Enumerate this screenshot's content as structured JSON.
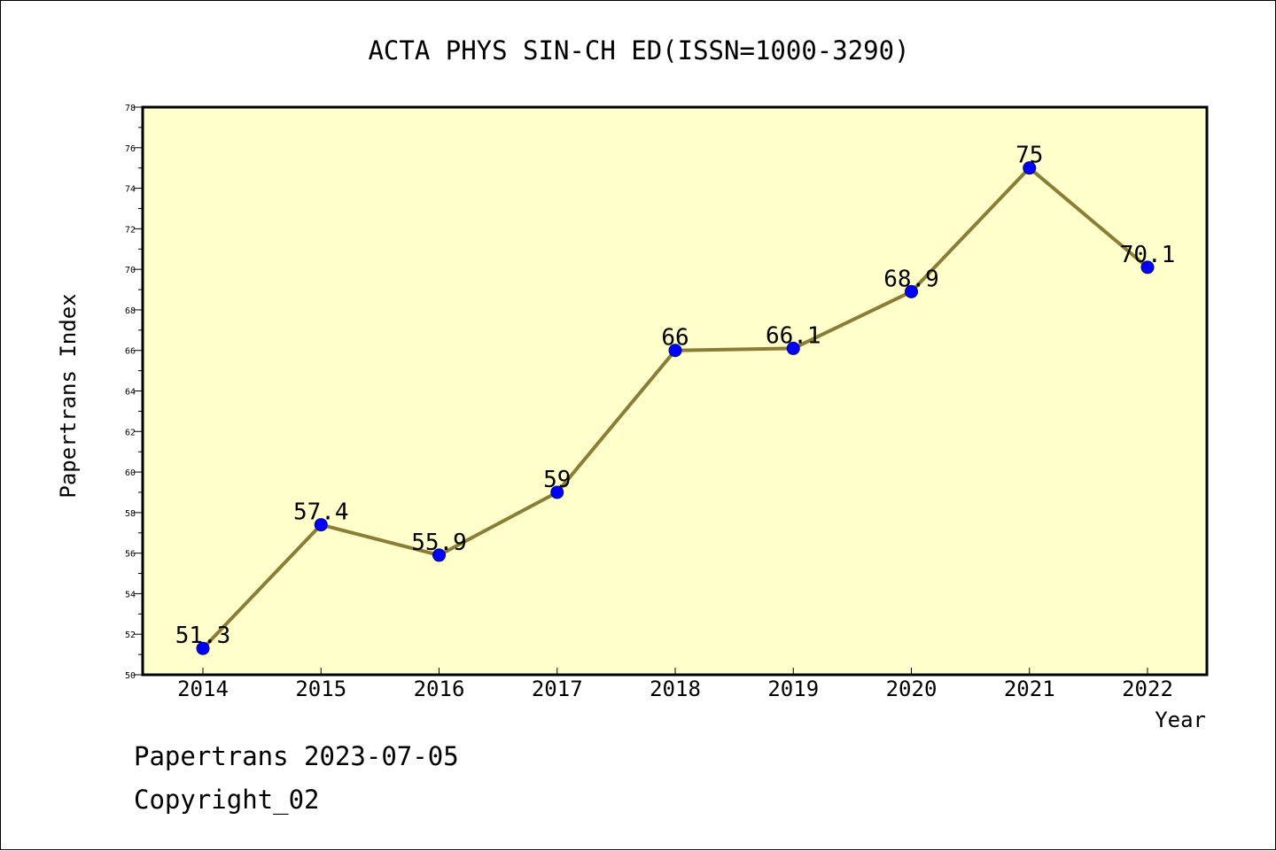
{
  "chart_data": {
    "type": "line",
    "title": "ACTA PHYS SIN-CH ED(ISSN=1000-3290)",
    "xlabel": "Year",
    "ylabel": "Papertrans Index",
    "categories": [
      "2014",
      "2015",
      "2016",
      "2017",
      "2018",
      "2019",
      "2020",
      "2021",
      "2022"
    ],
    "values": [
      51.3,
      57.4,
      55.9,
      59,
      66,
      66.1,
      68.9,
      75,
      70.1
    ],
    "data_labels": [
      "51.3",
      "57.4",
      "55.9",
      "59",
      "66",
      "66.1",
      "68.9",
      "75",
      "70.1"
    ],
    "ylim": [
      50,
      78
    ],
    "yticks": [
      "50",
      "52",
      "54",
      "56",
      "58",
      "60",
      "62",
      "64",
      "66",
      "68",
      "70",
      "72",
      "74",
      "76",
      "78"
    ],
    "grid": false,
    "colors": {
      "plot_background": "#FFFFCC",
      "line": "#8B7D35",
      "marker": "#0000FF"
    }
  },
  "footer": {
    "date_line": "Papertrans 2023-07-05",
    "copyright": "Copyright_02"
  }
}
